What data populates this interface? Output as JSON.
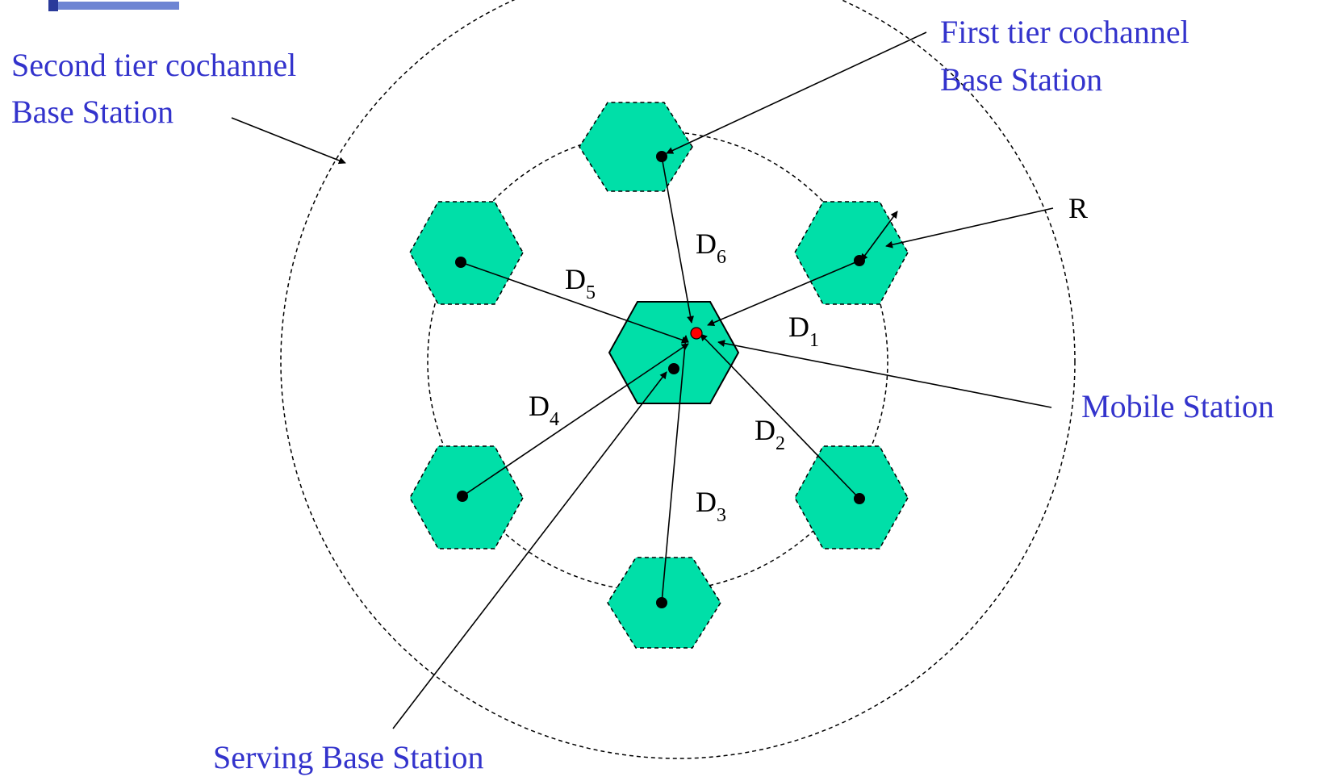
{
  "labels": {
    "second_tier_line1": "Second tier cochannel",
    "second_tier_line2": "Base Station",
    "first_tier_line1": "First tier cochannel",
    "first_tier_line2": "Base Station",
    "radius": "R",
    "mobile_station": "Mobile Station",
    "serving_base_station": "Serving Base Station"
  },
  "distances": [
    {
      "base": "D",
      "sub": "1"
    },
    {
      "base": "D",
      "sub": "2"
    },
    {
      "base": "D",
      "sub": "3"
    },
    {
      "base": "D",
      "sub": "4"
    },
    {
      "base": "D",
      "sub": "5"
    },
    {
      "base": "D",
      "sub": "6"
    }
  ],
  "colors": {
    "cell_fill": "#00dfa8",
    "label_blue": "#3333cc",
    "mobile_station": "#ff0000",
    "line": "#000000"
  }
}
